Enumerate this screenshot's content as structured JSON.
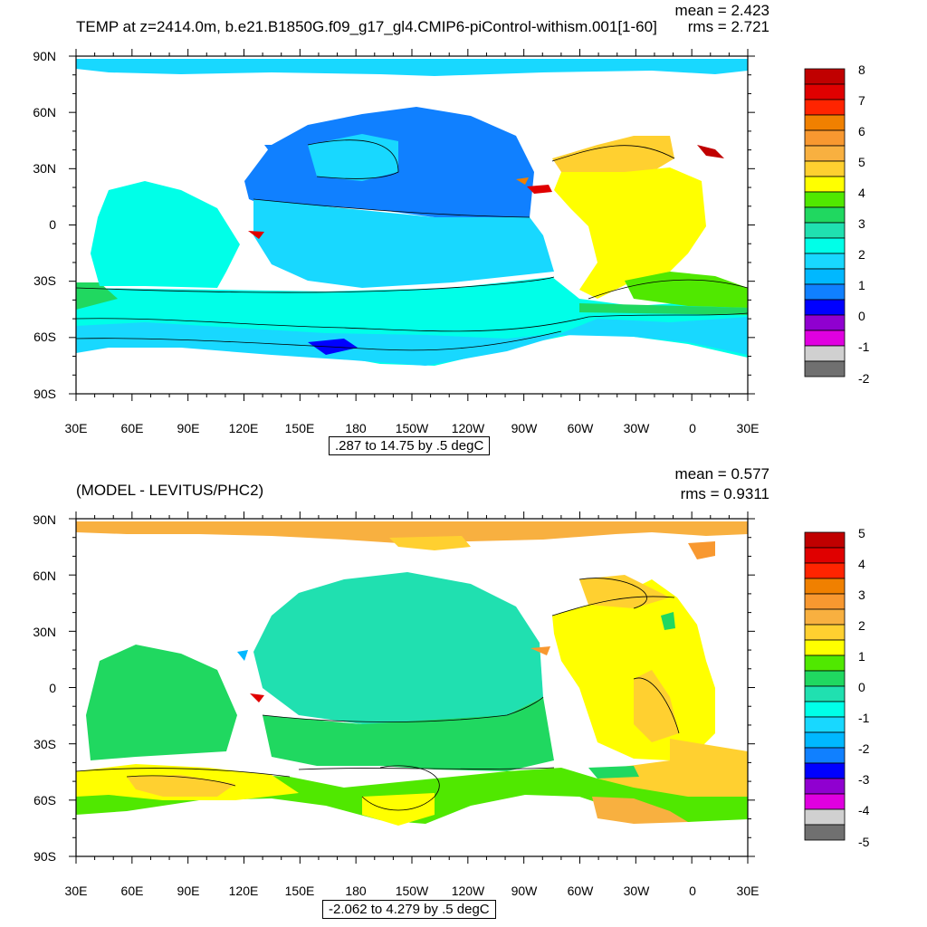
{
  "panels": [
    {
      "title": "TEMP at z=2414.0m, b.e21.B1850G.f09_g17_gl4.CMIP6-piControl-withism.001[1-60]",
      "mean": "mean = 2.423",
      "rms": "rms = 2.721",
      "contour_info": ".287 to 14.75 by .5 degC",
      "colorbar_labels": [
        "8",
        "7",
        "6",
        "5",
        "4",
        "3",
        "2",
        "1",
        "0",
        "-1",
        "-2"
      ],
      "colorbar_colors": [
        "#c00000",
        "#e00000",
        "#ff2400",
        "#f08000",
        "#f89830",
        "#f8b040",
        "#ffd030",
        "#ffff00",
        "#50e800",
        "#20d860",
        "#20e0b0",
        "#00ffe8",
        "#18d8ff",
        "#00b8ff",
        "#1080ff",
        "#0000ff",
        "#9000d0",
        "#e000e0",
        "#d0d0d0",
        "#707070"
      ]
    },
    {
      "title": "(MODEL - LEVITUS/PHC2)",
      "mean": "mean = 0.577",
      "rms": "rms = 0.9311",
      "contour_info": "-2.062 to 4.279 by .5 degC",
      "colorbar_labels": [
        "5",
        "4",
        "3",
        "2",
        "1",
        "0",
        "-1",
        "-2",
        "-3",
        "-4",
        "-5"
      ],
      "colorbar_colors": [
        "#c00000",
        "#e00000",
        "#ff2400",
        "#f08000",
        "#f89830",
        "#f8b040",
        "#ffd030",
        "#ffff00",
        "#50e800",
        "#20d860",
        "#20e0b0",
        "#00ffe8",
        "#18d8ff",
        "#00b8ff",
        "#1080ff",
        "#0000ff",
        "#9000d0",
        "#e000e0",
        "#d0d0d0",
        "#707070"
      ]
    }
  ],
  "axes": {
    "lat_labels": [
      "90N",
      "60N",
      "30N",
      "0",
      "30S",
      "60S",
      "90S"
    ],
    "lon_labels": [
      "30E",
      "60E",
      "90E",
      "120E",
      "150E",
      "180",
      "150W",
      "120W",
      "90W",
      "60W",
      "30W",
      "0",
      "30E"
    ]
  }
}
